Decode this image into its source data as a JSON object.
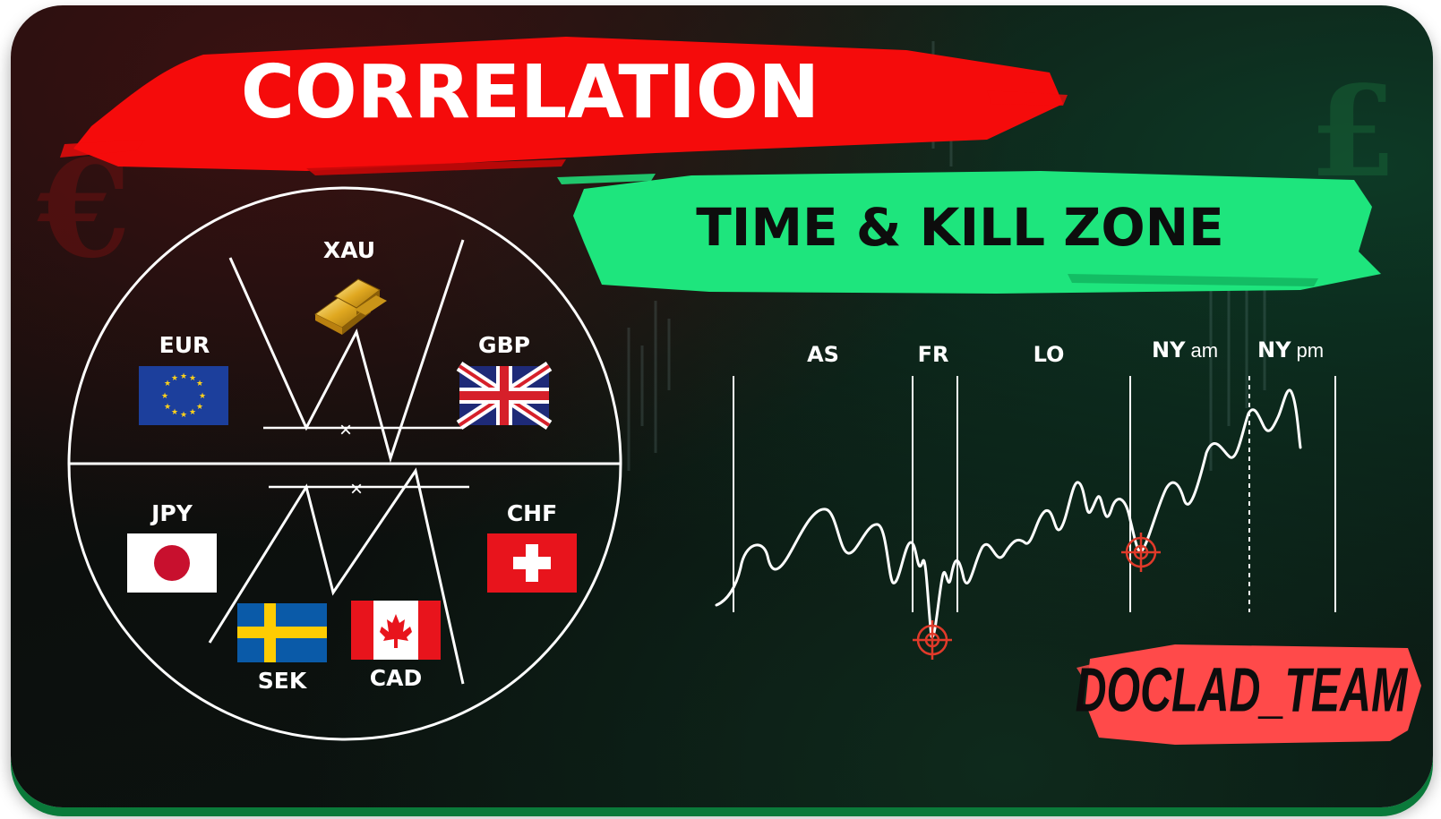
{
  "header": {
    "title": "CORRELATION",
    "subtitle": "TIME & KILL ZONE"
  },
  "colors": {
    "title_banner": "#f50b0b",
    "subtitle_banner": "#1ee57d",
    "badge_banner": "#ff4a4a",
    "target_marker": "#e03a2a",
    "background": "#0c0f0d"
  },
  "currency_wheel": {
    "assets": [
      {
        "code": "XAU",
        "icon": "gold-bars-icon"
      },
      {
        "code": "EUR",
        "icon": "eu-flag-icon"
      },
      {
        "code": "GBP",
        "icon": "uk-flag-icon"
      },
      {
        "code": "JPY",
        "icon": "japan-flag-icon"
      },
      {
        "code": "CHF",
        "icon": "switzerland-flag-icon"
      },
      {
        "code": "SEK",
        "icon": "sweden-flag-icon"
      },
      {
        "code": "CAD",
        "icon": "canada-flag-icon"
      }
    ],
    "cross_mark": "×"
  },
  "sessions": [
    {
      "label": "AS",
      "suffix": ""
    },
    {
      "label": "FR",
      "suffix": ""
    },
    {
      "label": "LO",
      "suffix": ""
    },
    {
      "label": "NY",
      "suffix": "am"
    },
    {
      "label": "NY",
      "suffix": "pm"
    }
  ],
  "badge": {
    "label": "DOCLAD_TEAM"
  }
}
